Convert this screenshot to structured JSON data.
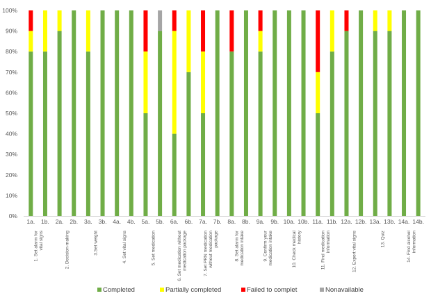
{
  "chart_data": {
    "type": "bar",
    "stacked": true,
    "percent": true,
    "categories": [
      "1a.",
      "1b.",
      "2a.",
      "2b.",
      "3a.",
      "3b.",
      "4a.",
      "4b.",
      "5a.",
      "5b.",
      "6a.",
      "6b.",
      "7a.",
      "7b.",
      "8a.",
      "8b.",
      "9a.",
      "9b.",
      "10a.",
      "10b.",
      "11a.",
      "11b.",
      "12a.",
      "12b.",
      "13a.",
      "13b.",
      "14a.",
      "14b."
    ],
    "series": [
      {
        "name": "Completed",
        "color": "#70AD47",
        "values": [
          80,
          80,
          90,
          100,
          80,
          100,
          100,
          100,
          50,
          90,
          40,
          70,
          50,
          100,
          80,
          100,
          80,
          100,
          100,
          100,
          50,
          80,
          90,
          100,
          90,
          90,
          100,
          100
        ]
      },
      {
        "name": "Partially completed",
        "color": "#FFFF00",
        "values": [
          10,
          20,
          10,
          0,
          20,
          0,
          0,
          0,
          30,
          0,
          50,
          30,
          30,
          0,
          0,
          0,
          10,
          0,
          0,
          0,
          20,
          20,
          0,
          0,
          10,
          10,
          0,
          0
        ]
      },
      {
        "name": "Failed to complet",
        "color": "#FF0000",
        "values": [
          10,
          0,
          0,
          0,
          0,
          0,
          0,
          0,
          20,
          0,
          10,
          0,
          20,
          0,
          20,
          0,
          10,
          0,
          0,
          0,
          30,
          0,
          10,
          0,
          0,
          0,
          0,
          0
        ]
      },
      {
        "name": "Nonavailable",
        "color": "#A5A5A5",
        "values": [
          0,
          0,
          0,
          0,
          0,
          0,
          0,
          0,
          0,
          10,
          0,
          0,
          0,
          0,
          0,
          0,
          0,
          0,
          0,
          0,
          0,
          0,
          0,
          0,
          0,
          0,
          0,
          0
        ]
      }
    ],
    "ylim": [
      0,
      100
    ],
    "yticks": [
      "0%",
      "10%",
      "20%",
      "30%",
      "40%",
      "50%",
      "60%",
      "70%",
      "80%",
      "90%",
      "100%"
    ],
    "task_groups": [
      {
        "label": "1. Set alarm for vital signs",
        "lines": [
          "1. Set alarm for",
          "vital signs"
        ],
        "start": 0,
        "end": 1
      },
      {
        "label": "2. Decision-making",
        "lines": [
          "2. Decision-making"
        ],
        "start": 2,
        "end": 3
      },
      {
        "label": "3.Set weight",
        "lines": [
          "3.Set weight"
        ],
        "start": 4,
        "end": 5
      },
      {
        "label": "4. Set vital signs",
        "lines": [
          "4. Set vital signs"
        ],
        "start": 6,
        "end": 7
      },
      {
        "label": "5. Set medication",
        "lines": [
          "5. Set medication"
        ],
        "start": 8,
        "end": 9
      },
      {
        "label": "6. Set medication without medication package",
        "lines": [
          "6. Set medication without",
          "medication package"
        ],
        "start": 10,
        "end": 11
      },
      {
        "label": "7. Set PRN medication without medication package",
        "lines": [
          "7. Set PRN medication",
          "without medication",
          "package"
        ],
        "start": 12,
        "end": 13
      },
      {
        "label": "8. Set alarm for medication intake",
        "lines": [
          "8. Set alarm for",
          "medication intake"
        ],
        "start": 14,
        "end": 15
      },
      {
        "label": "9. Confirm your medication intake",
        "lines": [
          "9. Confirm your",
          "medication intake"
        ],
        "start": 16,
        "end": 17
      },
      {
        "label": "10. Check medical history",
        "lines": [
          "10. Check medical",
          "history"
        ],
        "start": 18,
        "end": 19
      },
      {
        "label": "11. Find medication information",
        "lines": [
          "11. Find medication",
          "information"
        ],
        "start": 20,
        "end": 21
      },
      {
        "label": "12. Export vital signs",
        "lines": [
          "12. Export vital signs"
        ],
        "start": 22,
        "end": 23
      },
      {
        "label": "13. Quiz",
        "lines": [
          "13. Quiz"
        ],
        "start": 24,
        "end": 25
      },
      {
        "label": "14. Find alcohol information",
        "lines": [
          "14. Find alcohol",
          "information"
        ],
        "start": 26,
        "end": 27
      }
    ],
    "legend": {
      "position": "bottom"
    },
    "grid": false
  }
}
